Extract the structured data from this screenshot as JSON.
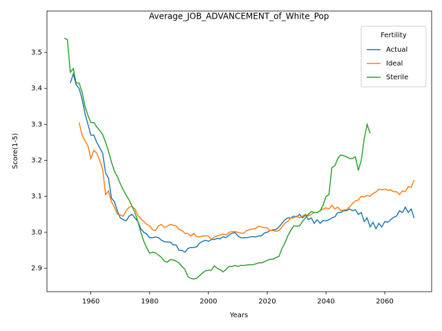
{
  "chart_data": {
    "type": "line",
    "title": "Average_JOB_ADVANCEMENT_of_White_Pop",
    "x_label": "Years",
    "y_label": "Score(1-5)",
    "legend_title": "Fertility",
    "legend_position": "upper right",
    "grid": false,
    "xlim": [
      1945.05,
      2075.95
    ],
    "ylim": [
      2.835,
      3.615
    ],
    "xticks": [
      1960,
      1980,
      2000,
      2020,
      2040,
      2060
    ],
    "yticks": [
      2.9,
      {
        "value": 3,
        "label": "3.0"
      },
      3.1,
      3.2,
      3.3,
      3.4,
      3.5
    ],
    "x": [
      1951,
      1952,
      1953,
      1954,
      1955,
      1956,
      1957,
      1958,
      1959,
      1960,
      1961,
      1962,
      1963,
      1964,
      1965,
      1966,
      1967,
      1968,
      1969,
      1970,
      1971,
      1972,
      1973,
      1974,
      1975,
      1976,
      1977,
      1978,
      1979,
      1980,
      1981,
      1982,
      1983,
      1984,
      1985,
      1986,
      1987,
      1988,
      1989,
      1990,
      1991,
      1992,
      1993,
      1994,
      1995,
      1996,
      1997,
      1998,
      1999,
      2000,
      2001,
      2002,
      2003,
      2004,
      2005,
      2006,
      2007,
      2008,
      2009,
      2010,
      2011,
      2012,
      2013,
      2014,
      2015,
      2016,
      2017,
      2018,
      2019,
      2020,
      2021,
      2022,
      2023,
      2024,
      2025,
      2026,
      2027,
      2028,
      2029,
      2030,
      2031,
      2032,
      2033,
      2034,
      2035,
      2036,
      2037,
      2038,
      2039,
      2040,
      2041,
      2042,
      2043,
      2044,
      2045,
      2046,
      2047,
      2048,
      2049,
      2050,
      2051,
      2052,
      2053,
      2054,
      2055,
      2056,
      2057,
      2058,
      2059,
      2060,
      2061,
      2062,
      2063,
      2064,
      2065,
      2066,
      2067,
      2068,
      2069,
      2070
    ],
    "series": [
      {
        "name": "Actual",
        "color": "#1f77b4",
        "values": [
          null,
          null,
          3.415,
          3.44,
          3.41,
          3.4,
          3.37,
          3.33,
          3.3,
          3.27,
          3.27,
          3.25,
          3.235,
          3.22,
          3.165,
          3.15,
          3.095,
          3.085,
          3.06,
          3.04,
          3.035,
          3.032,
          3.045,
          3.05,
          3.04,
          3.03,
          3.01,
          3.0,
          2.995,
          2.985,
          2.985,
          2.987,
          2.985,
          2.978,
          2.974,
          2.973,
          2.973,
          2.965,
          2.965,
          2.95,
          2.95,
          2.945,
          2.955,
          2.958,
          2.958,
          2.96,
          2.97,
          2.975,
          2.978,
          2.975,
          2.98,
          2.98,
          2.983,
          2.982,
          2.988,
          2.985,
          2.993,
          2.997,
          3.0,
          2.99,
          2.985,
          2.985,
          2.985,
          2.987,
          2.988,
          2.987,
          2.99,
          2.99,
          2.998,
          3.0,
          3.005,
          3.007,
          3.008,
          3.015,
          3.025,
          3.035,
          3.04,
          3.04,
          3.045,
          3.043,
          3.05,
          3.04,
          3.048,
          3.035,
          3.04,
          3.025,
          3.035,
          3.025,
          3.033,
          3.032,
          3.035,
          3.04,
          3.043,
          3.055,
          3.055,
          3.06,
          3.06,
          3.065,
          3.06,
          3.063,
          3.05,
          3.055,
          3.03,
          3.04,
          3.015,
          3.028,
          3.01,
          3.025,
          3.015,
          3.03,
          3.028,
          3.035,
          3.042,
          3.045,
          3.06,
          3.055,
          3.07,
          3.055,
          3.065,
          3.04
        ]
      },
      {
        "name": "Ideal",
        "color": "#ff7f0e",
        "values": [
          null,
          null,
          null,
          null,
          null,
          3.305,
          3.27,
          3.255,
          3.24,
          3.205,
          3.228,
          3.22,
          3.2,
          3.175,
          3.105,
          3.115,
          3.085,
          3.07,
          3.05,
          3.048,
          3.045,
          3.06,
          3.07,
          3.072,
          3.065,
          3.047,
          3.038,
          3.03,
          3.022,
          3.018,
          3.007,
          3.005,
          3.018,
          3.022,
          3.013,
          3.017,
          3.022,
          3.02,
          3.018,
          3.008,
          3.005,
          2.997,
          2.997,
          2.99,
          2.997,
          2.988,
          2.987,
          2.99,
          2.99,
          2.99,
          2.98,
          2.987,
          2.99,
          2.993,
          2.995,
          2.993,
          3.0,
          3.002,
          3.002,
          3.0,
          2.998,
          2.997,
          3.005,
          3.007,
          3.01,
          3.01,
          3.017,
          3.015,
          3.013,
          3.012,
          3.005,
          3.005,
          3.003,
          3.005,
          3.015,
          3.025,
          3.03,
          3.04,
          3.04,
          3.045,
          3.04,
          3.045,
          3.05,
          3.045,
          3.05,
          3.055,
          3.055,
          3.06,
          3.065,
          3.068,
          3.065,
          3.075,
          3.065,
          3.07,
          3.06,
          3.062,
          3.063,
          3.07,
          3.08,
          3.087,
          3.09,
          3.1,
          3.098,
          3.103,
          3.1,
          3.108,
          3.112,
          3.12,
          3.118,
          3.12,
          3.117,
          3.118,
          3.113,
          3.113,
          3.105,
          3.115,
          3.113,
          3.127,
          3.125,
          3.145
        ]
      },
      {
        "name": "Sterile",
        "color": "#2ca02c",
        "values": [
          3.54,
          3.535,
          3.445,
          3.455,
          3.415,
          3.415,
          3.39,
          3.35,
          3.325,
          3.305,
          3.305,
          3.293,
          3.283,
          3.272,
          3.25,
          3.225,
          3.195,
          3.17,
          3.155,
          3.135,
          3.118,
          3.103,
          3.09,
          3.073,
          3.055,
          3.03,
          3.0,
          2.975,
          2.957,
          2.942,
          2.945,
          2.943,
          2.937,
          2.93,
          2.92,
          2.917,
          2.924,
          2.923,
          2.92,
          2.915,
          2.905,
          2.897,
          2.877,
          2.872,
          2.87,
          2.872,
          2.88,
          2.887,
          2.893,
          2.895,
          2.895,
          2.907,
          2.9,
          2.896,
          2.89,
          2.897,
          2.905,
          2.905,
          2.908,
          2.905,
          2.908,
          2.908,
          2.909,
          2.91,
          2.91,
          2.912,
          2.915,
          2.915,
          2.918,
          2.922,
          2.925,
          2.925,
          2.93,
          2.933,
          2.955,
          2.97,
          2.99,
          3.005,
          3.018,
          3.017,
          3.018,
          3.03,
          3.04,
          3.05,
          3.058,
          3.055,
          3.055,
          3.06,
          3.075,
          3.1,
          3.105,
          3.18,
          3.185,
          3.205,
          3.215,
          3.213,
          3.21,
          3.205,
          3.205,
          3.21,
          3.172,
          3.2,
          3.26,
          3.3,
          3.275,
          null,
          null,
          null,
          null,
          null,
          null,
          null,
          null,
          null,
          null,
          null,
          null,
          null,
          null,
          null
        ]
      }
    ]
  }
}
